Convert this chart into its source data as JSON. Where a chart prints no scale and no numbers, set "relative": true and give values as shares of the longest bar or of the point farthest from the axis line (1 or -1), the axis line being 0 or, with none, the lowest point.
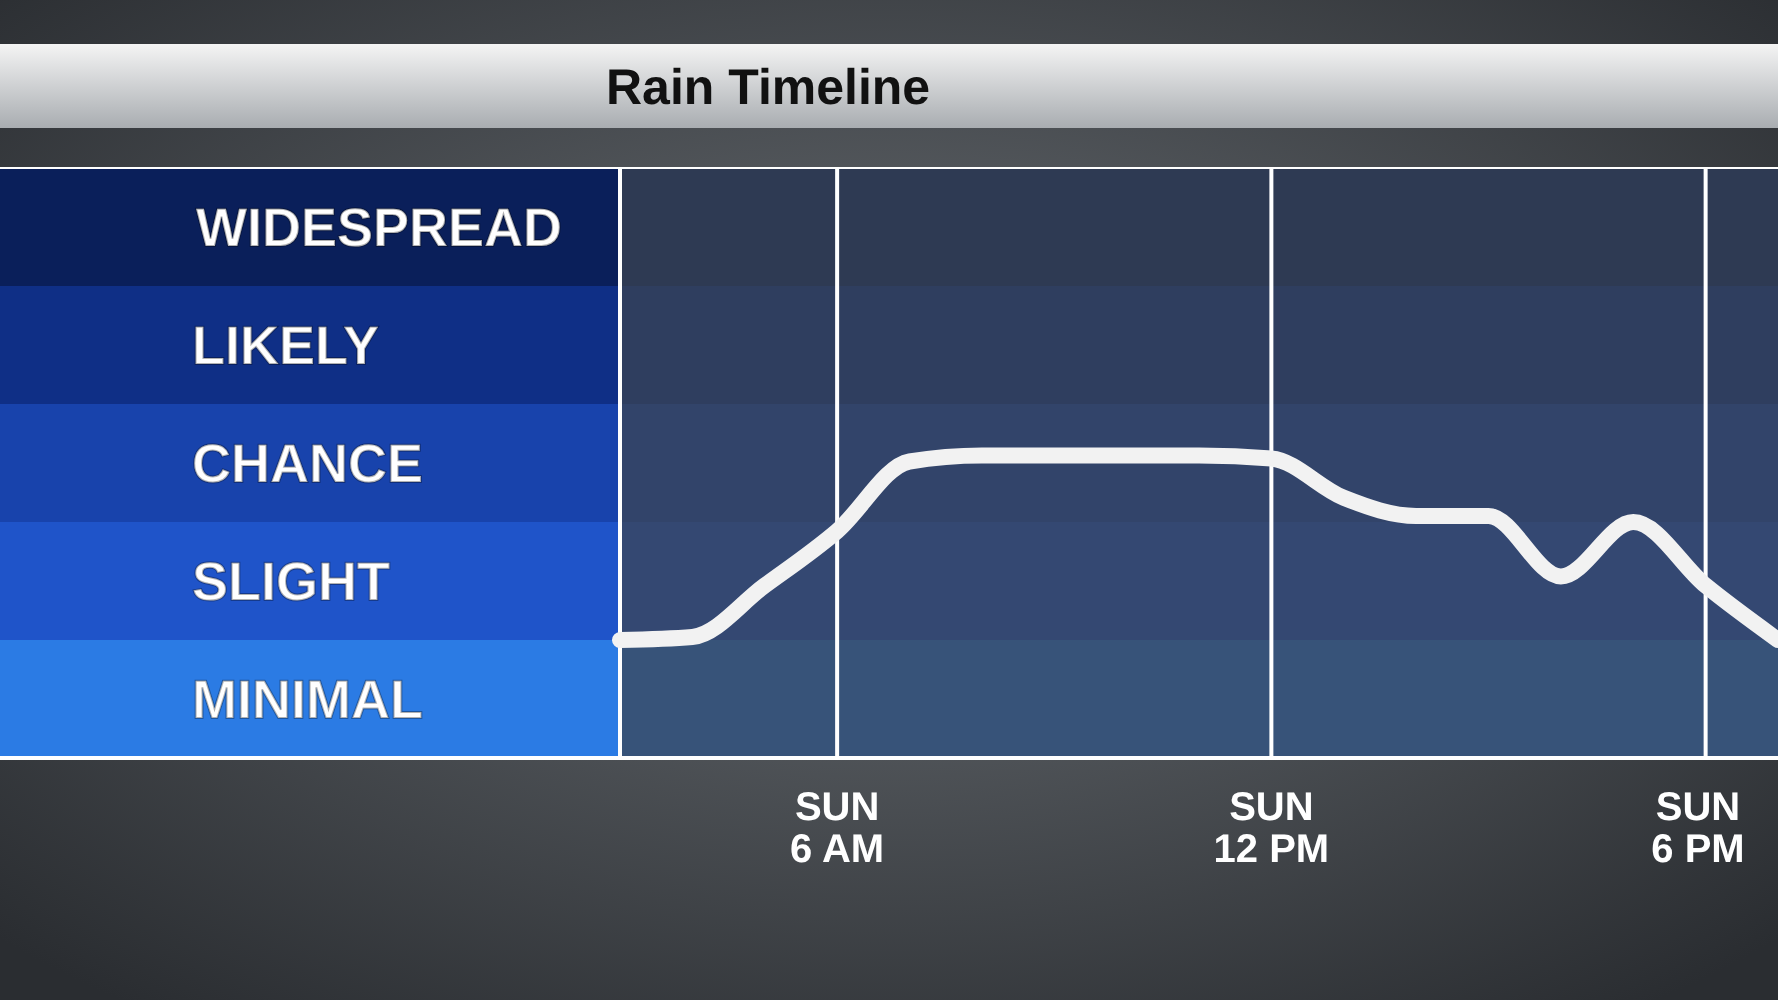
{
  "chart_data": {
    "type": "line",
    "title": "Rain Timeline",
    "relative": true,
    "categories": [
      null,
      null,
      null,
      "SUN\n6 AM",
      null,
      null,
      null,
      null,
      null,
      "SUN\n12 PM",
      null,
      null,
      null,
      null,
      null,
      "SUN\n6 PM",
      null
    ],
    "series": [
      {
        "color": "#f2f2f2",
        "values": [
          0.39,
          0.4,
          0.57,
          0.75,
          0.98,
          1,
          1,
          1,
          1,
          0.99,
          0.86,
          0.8,
          0.8,
          0.6,
          0.78,
          0.57,
          0.39
        ]
      }
    ],
    "bands": [
      {
        "axis": "y",
        "from": 0,
        "to": 0.39,
        "label": "MINIMAL",
        "color": "#2b7be4"
      },
      {
        "axis": "y",
        "from": 0.39,
        "to": 0.78,
        "label": "SLIGHT",
        "color": "#1f54c9"
      },
      {
        "axis": "y",
        "from": 0.78,
        "to": 1.17,
        "label": "CHANCE",
        "color": "#1843ac"
      },
      {
        "axis": "y",
        "from": 1.17,
        "to": 1.56,
        "label": "LIKELY",
        "color": "#0f2f86"
      },
      {
        "axis": "y",
        "from": 1.56,
        "to": 1.95,
        "label": "WIDESPREAD",
        "color": "#0a1f5a"
      }
    ],
    "grid": "x"
  }
}
